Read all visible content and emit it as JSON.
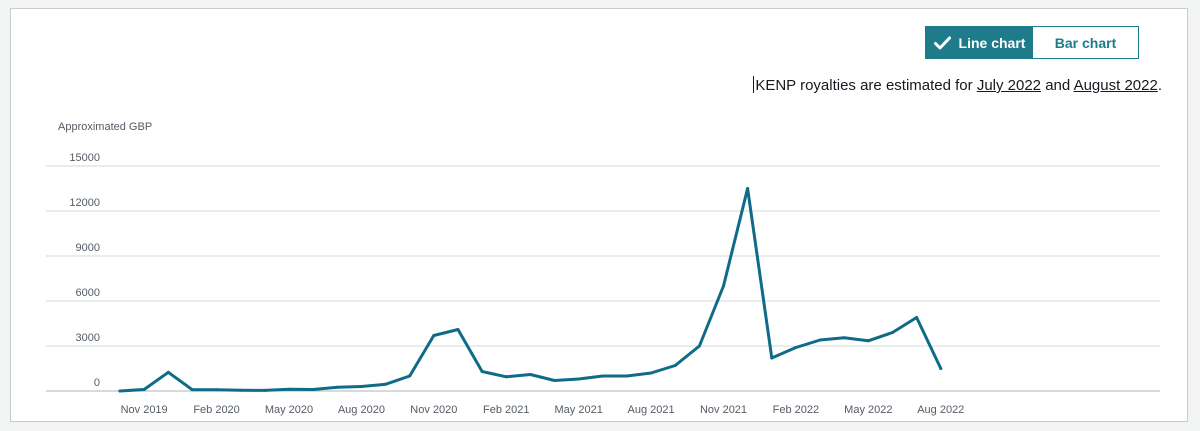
{
  "toggle": {
    "line_label": "Line chart",
    "bar_label": "Bar chart",
    "active": "line",
    "check_icon": "checkmark-icon"
  },
  "note": {
    "prefix": "KENP royalties are estimated for ",
    "month1": "July 2022",
    "joiner": " and ",
    "month2": "August 2022",
    "suffix": "."
  },
  "colors": {
    "accent": "#1d7b8a",
    "line": "#0f6b87",
    "grid": "#d5d9d9",
    "axis_text": "#545b64"
  },
  "chart_data": {
    "type": "line",
    "title": "",
    "ylabel": "Approximated GBP",
    "xlabel": "",
    "ylim": [
      0,
      15000
    ],
    "yticks": [
      0,
      3000,
      6000,
      9000,
      12000,
      15000
    ],
    "grid": true,
    "x_tick_labels": [
      "Nov 2019",
      "Feb 2020",
      "May 2020",
      "Aug 2020",
      "Nov 2020",
      "Feb 2021",
      "May 2021",
      "Aug 2021",
      "Nov 2021",
      "Feb 2022",
      "May 2022",
      "Aug 2022"
    ],
    "x": [
      "Oct 2019",
      "Nov 2019",
      "Dec 2019",
      "Jan 2020",
      "Feb 2020",
      "Mar 2020",
      "Apr 2020",
      "May 2020",
      "Jun 2020",
      "Jul 2020",
      "Aug 2020",
      "Sep 2020",
      "Oct 2020",
      "Nov 2020",
      "Dec 2020",
      "Jan 2021",
      "Feb 2021",
      "Mar 2021",
      "Apr 2021",
      "May 2021",
      "Jun 2021",
      "Jul 2021",
      "Aug 2021",
      "Sep 2021",
      "Oct 2021",
      "Nov 2021",
      "Dec 2021",
      "Jan 2022",
      "Feb 2022",
      "Mar 2022",
      "Apr 2022",
      "May 2022",
      "Jun 2022",
      "Jul 2022",
      "Aug 2022"
    ],
    "series": [
      {
        "values": [
          0,
          100,
          1250,
          80,
          80,
          50,
          40,
          120,
          100,
          250,
          300,
          450,
          1000,
          3700,
          4100,
          1300,
          950,
          1100,
          700,
          800,
          1000,
          1000,
          1200,
          1700,
          3000,
          7000,
          13500,
          2200,
          2900,
          3400,
          3550,
          3350,
          3900,
          4900,
          1500
        ]
      }
    ]
  }
}
